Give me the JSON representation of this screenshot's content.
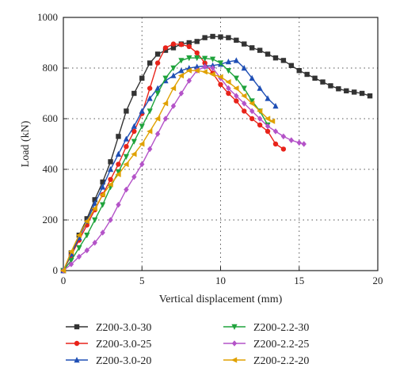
{
  "chart_data": {
    "type": "line",
    "xlabel": "Vertical displacement (mm)",
    "ylabel": "Load (kN)",
    "xlim": [
      0,
      20
    ],
    "ylim": [
      0,
      1000
    ],
    "xticks": [
      0,
      5,
      10,
      15,
      20
    ],
    "yticks": [
      0,
      200,
      400,
      600,
      800,
      1000
    ],
    "grid": "dotted",
    "legend_position": "bottom",
    "series": [
      {
        "name": "Z200-3.0-30",
        "color": "#333333",
        "marker": "square",
        "x": [
          0,
          0.5,
          1.0,
          1.5,
          2.0,
          2.5,
          3.0,
          3.5,
          4.0,
          4.5,
          5.0,
          5.5,
          6.0,
          6.5,
          7.0,
          7.5,
          8.0,
          8.5,
          9.0,
          9.5,
          10.0,
          10.5,
          11.0,
          11.5,
          12.0,
          12.5,
          13.0,
          13.5,
          14.0,
          14.5,
          15.0,
          15.5,
          16.0,
          16.5,
          17.0,
          17.5,
          18.0,
          18.5,
          19.0,
          19.5
        ],
        "y": [
          0,
          70,
          140,
          205,
          280,
          350,
          430,
          530,
          630,
          700,
          760,
          820,
          855,
          870,
          880,
          895,
          900,
          905,
          920,
          925,
          923,
          920,
          910,
          895,
          880,
          870,
          855,
          840,
          830,
          810,
          790,
          775,
          760,
          745,
          730,
          718,
          710,
          705,
          700,
          690
        ]
      },
      {
        "name": "Z200-3.0-25",
        "color": "#e8231a",
        "marker": "circle",
        "x": [
          0,
          0.5,
          1.0,
          1.5,
          2.0,
          2.5,
          3.0,
          3.5,
          4.0,
          4.5,
          5.0,
          5.5,
          6.0,
          6.5,
          7.0,
          7.5,
          8.0,
          8.5,
          9.0,
          9.5,
          10.0,
          10.5,
          11.0,
          11.5,
          12.0,
          12.5,
          13.0,
          13.5,
          14.0
        ],
        "y": [
          0,
          60,
          120,
          180,
          240,
          300,
          360,
          420,
          490,
          550,
          620,
          720,
          820,
          880,
          895,
          893,
          885,
          860,
          820,
          780,
          735,
          700,
          670,
          630,
          600,
          575,
          550,
          500,
          480
        ]
      },
      {
        "name": "Z200-3.0-20",
        "color": "#1f4fb5",
        "marker": "triangle-up",
        "x": [
          0,
          0.5,
          1.0,
          1.5,
          2.0,
          2.5,
          3.0,
          3.5,
          4.0,
          4.5,
          5.0,
          5.5,
          6.0,
          6.5,
          7.0,
          7.5,
          8.0,
          8.5,
          9.0,
          9.5,
          10.0,
          10.5,
          11.0,
          11.5,
          12.0,
          12.5,
          13.0,
          13.5
        ],
        "y": [
          0,
          65,
          130,
          195,
          265,
          330,
          400,
          460,
          520,
          570,
          630,
          680,
          720,
          750,
          770,
          790,
          800,
          805,
          808,
          810,
          815,
          825,
          830,
          800,
          760,
          720,
          680,
          650
        ]
      },
      {
        "name": "Z200-2.2-30",
        "color": "#1fa33c",
        "marker": "triangle-down",
        "x": [
          0,
          0.5,
          1.0,
          1.5,
          2.0,
          2.5,
          3.0,
          3.5,
          4.0,
          4.5,
          5.0,
          5.5,
          6.0,
          6.5,
          7.0,
          7.5,
          8.0,
          8.5,
          9.0,
          9.5,
          10.0,
          10.5,
          11.0,
          11.5,
          12.0,
          12.5,
          13.0
        ],
        "y": [
          0,
          40,
          90,
          140,
          200,
          260,
          330,
          390,
          450,
          510,
          570,
          630,
          700,
          760,
          800,
          830,
          840,
          840,
          838,
          835,
          820,
          790,
          760,
          720,
          670,
          630,
          575
        ]
      },
      {
        "name": "Z200-2.2-25",
        "color": "#b453c8",
        "marker": "diamond",
        "x": [
          0,
          0.5,
          1.0,
          1.5,
          2.0,
          2.5,
          3.0,
          3.5,
          4.0,
          4.5,
          5.0,
          5.5,
          6.0,
          6.5,
          7.0,
          7.5,
          8.0,
          8.5,
          9.0,
          9.5,
          10.0,
          10.5,
          11.0,
          11.5,
          12.0,
          12.5,
          13.0,
          13.5,
          14.0,
          14.5,
          15.0,
          15.3
        ],
        "y": [
          0,
          25,
          55,
          80,
          110,
          150,
          200,
          260,
          320,
          370,
          420,
          480,
          540,
          600,
          650,
          700,
          750,
          790,
          805,
          800,
          760,
          720,
          690,
          660,
          630,
          600,
          570,
          550,
          530,
          515,
          505,
          500
        ]
      },
      {
        "name": "Z200-2.2-20",
        "color": "#e0a100",
        "marker": "triangle-left",
        "x": [
          0,
          0.5,
          1.0,
          1.5,
          2.0,
          2.5,
          3.0,
          3.5,
          4.0,
          4.5,
          5.0,
          5.5,
          6.0,
          6.5,
          7.0,
          7.5,
          8.0,
          8.5,
          9.0,
          9.5,
          10.0,
          10.5,
          11.0,
          11.5,
          12.0,
          12.5,
          13.0,
          13.3
        ],
        "y": [
          0,
          75,
          140,
          195,
          245,
          300,
          340,
          380,
          420,
          460,
          500,
          550,
          600,
          660,
          720,
          770,
          790,
          790,
          785,
          775,
          765,
          745,
          720,
          690,
          660,
          630,
          600,
          590
        ]
      }
    ]
  }
}
